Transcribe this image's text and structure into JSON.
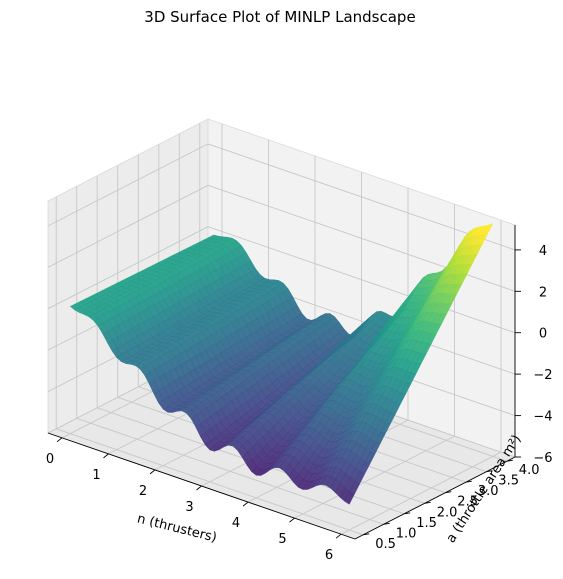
{
  "title": "3D Surface Plot of MINLP Landscape",
  "chart_data": {
    "type": "surface",
    "title": "3D Surface Plot of MINLP Landscape",
    "xlabel": "n (thrusters)",
    "ylabel": "a (throttle area m²)",
    "zlabel": "",
    "x_ticks": [
      "0",
      "1",
      "2",
      "3",
      "4",
      "5",
      "6"
    ],
    "y_ticks": [
      "0.5",
      "1.0",
      "1.5",
      "2.0",
      "2.5",
      "3.0",
      "3.5",
      "4.0"
    ],
    "z_ticks": [
      "−6",
      "−4",
      "−2",
      "0",
      "2",
      "4"
    ],
    "xlim": [
      -0.3,
      6.3
    ],
    "ylim": [
      0.3,
      4.2
    ],
    "zlim": [
      -6,
      5.2
    ],
    "colormap": "viridis",
    "surface": {
      "x_range": [
        0,
        6
      ],
      "y_range": [
        0.5,
        4.0
      ],
      "z_min": -5.8,
      "z_max": 4.7,
      "valleys_at_integer_n": true,
      "corner_values": [
        {
          "n": 0,
          "a": 0.5,
          "z": -0.4
        },
        {
          "n": 6,
          "a": 0.5,
          "z": -5.3
        },
        {
          "n": 0,
          "a": 4.0,
          "z": -0.5
        },
        {
          "n": 6,
          "a": 4.0,
          "z": 4.7
        }
      ]
    },
    "grid": true
  }
}
